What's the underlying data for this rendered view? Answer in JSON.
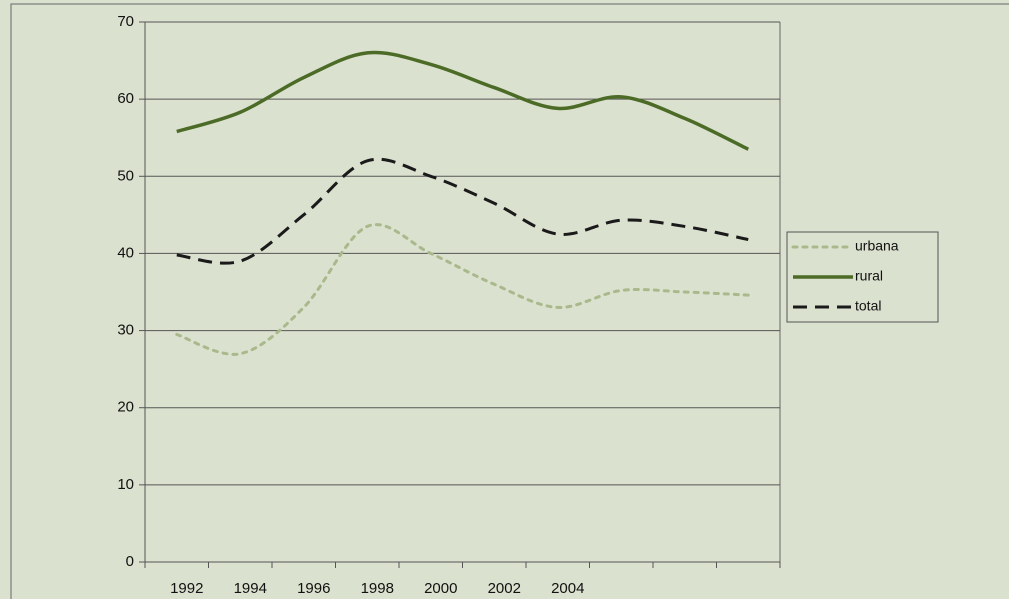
{
  "chart_data": {
    "type": "line",
    "categories": [
      "1992",
      "1994",
      "1996",
      "1998",
      "2000",
      "2002",
      "2004",
      null,
      null,
      null
    ],
    "series": [
      {
        "name": "urbana",
        "color": "#a9b98c",
        "dash": "dotted",
        "values": [
          29.5,
          27,
          33,
          43.5,
          40,
          36,
          33,
          35.2,
          35,
          34.6
        ]
      },
      {
        "name": "rural",
        "color": "#4b6b26",
        "dash": "solid",
        "values": [
          55.8,
          58.3,
          62.8,
          66,
          64.5,
          61.5,
          58.8,
          60.3,
          57.5,
          53.5
        ]
      },
      {
        "name": "total",
        "color": "#1a1a1a",
        "dash": "dashed",
        "values": [
          39.8,
          39,
          45,
          52,
          50,
          46.5,
          42.5,
          44.3,
          43.5,
          41.8
        ]
      }
    ],
    "ylim": [
      0,
      70
    ],
    "yticks": [
      0,
      10,
      20,
      30,
      40,
      50,
      60,
      70
    ],
    "grid": true,
    "legend": "right"
  }
}
